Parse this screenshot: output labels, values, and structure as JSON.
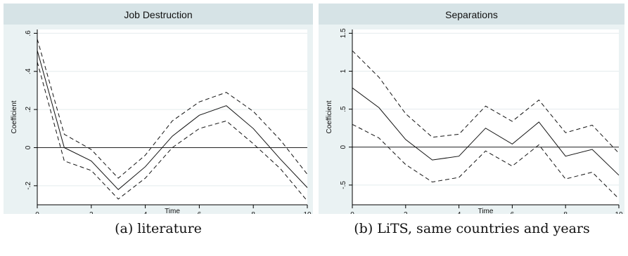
{
  "chart_data": [
    {
      "type": "line",
      "title": "Job Destruction",
      "xlabel": "Time",
      "ylabel": "Coefficient",
      "xlim": [
        0,
        10
      ],
      "ylim": [
        -0.3,
        0.62
      ],
      "xticks": [
        0,
        2,
        4,
        6,
        8,
        10
      ],
      "yticks": [
        -0.2,
        0,
        0.2,
        0.4,
        0.6
      ],
      "ytick_labels": [
        "-.2",
        "0",
        ".2",
        ".4",
        ".6"
      ],
      "reference_line": 0,
      "grid": "horizontal",
      "x": [
        0,
        1,
        2,
        3,
        4,
        5,
        6,
        7,
        8,
        9,
        10
      ],
      "series": [
        {
          "role": "estimate",
          "style": "solid",
          "values": [
            0.51,
            0.0,
            -0.07,
            -0.22,
            -0.1,
            0.06,
            0.17,
            0.22,
            0.1,
            -0.06,
            -0.21
          ]
        },
        {
          "role": "upper",
          "style": "dashed",
          "values": [
            0.57,
            0.07,
            -0.01,
            -0.16,
            -0.04,
            0.14,
            0.24,
            0.29,
            0.19,
            0.04,
            -0.14
          ]
        },
        {
          "role": "lower",
          "style": "dashed",
          "values": [
            0.45,
            -0.07,
            -0.12,
            -0.27,
            -0.16,
            0.0,
            0.1,
            0.14,
            0.02,
            -0.11,
            -0.28
          ]
        }
      ],
      "caption": "(a) literature"
    },
    {
      "type": "line",
      "title": "Separations",
      "xlabel": "Time",
      "ylabel": "Coefficient",
      "xlim": [
        0,
        10
      ],
      "ylim": [
        -0.76,
        1.55
      ],
      "xticks": [
        0,
        2,
        4,
        6,
        8,
        10
      ],
      "yticks": [
        -0.5,
        0,
        0.5,
        1,
        1.5
      ],
      "ytick_labels": [
        "-.5",
        "0",
        ".5",
        "1",
        "1.5"
      ],
      "reference_line": 0,
      "grid": "horizontal",
      "x": [
        0,
        1,
        2,
        3,
        4,
        5,
        6,
        7,
        8,
        9,
        10
      ],
      "series": [
        {
          "role": "estimate",
          "style": "solid",
          "values": [
            0.78,
            0.52,
            0.1,
            -0.17,
            -0.12,
            0.25,
            0.04,
            0.33,
            -0.12,
            -0.03,
            -0.37
          ]
        },
        {
          "role": "upper",
          "style": "dashed",
          "values": [
            1.27,
            0.92,
            0.44,
            0.13,
            0.17,
            0.54,
            0.34,
            0.62,
            0.19,
            0.29,
            -0.08
          ]
        },
        {
          "role": "lower",
          "style": "dashed",
          "values": [
            0.3,
            0.12,
            -0.23,
            -0.46,
            -0.4,
            -0.05,
            -0.25,
            0.03,
            -0.42,
            -0.33,
            -0.68
          ]
        }
      ],
      "caption": "(b) LiTS, same countries and years"
    }
  ]
}
